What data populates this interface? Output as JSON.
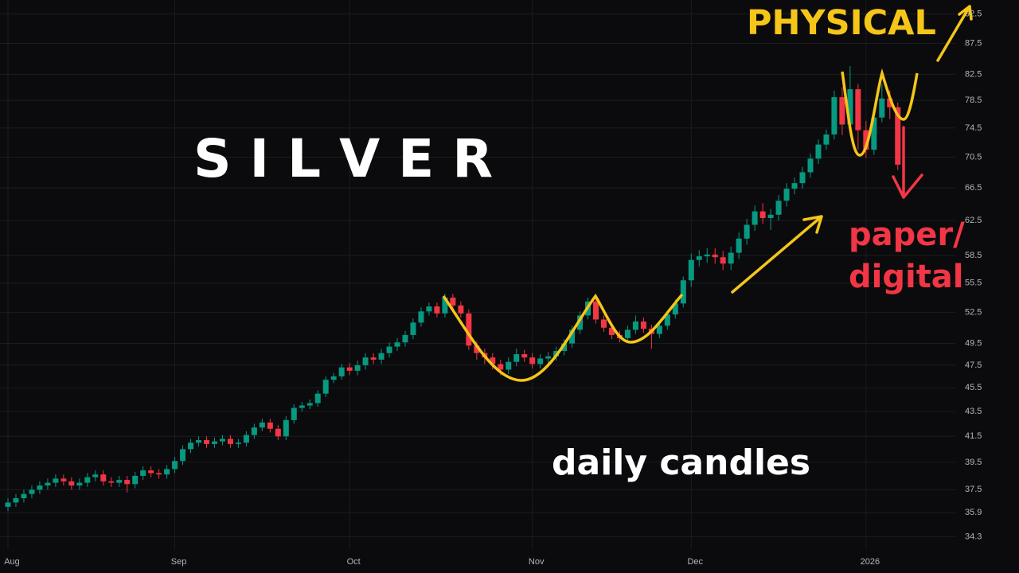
{
  "chart_data": {
    "type": "candlestick",
    "log_scale": true,
    "grid": true,
    "up_color": "#089981",
    "down_color": "#f23645",
    "annotations": [
      "S I L V E R",
      "daily candles",
      "PHYSICAL",
      "paper/",
      "digital"
    ],
    "ylim": [
      33.5,
      95.0
    ],
    "yticks": [
      34.3,
      35.9,
      37.5,
      39.5,
      41.5,
      43.5,
      45.5,
      47.5,
      49.5,
      52.5,
      55.5,
      58.5,
      62.5,
      66.5,
      70.5,
      74.5,
      78.5,
      82.5,
      87.5,
      92.5
    ],
    "categories": [
      "Aug",
      null,
      null,
      null,
      null,
      null,
      null,
      null,
      null,
      null,
      null,
      null,
      null,
      null,
      null,
      null,
      null,
      null,
      null,
      null,
      null,
      "Sep",
      null,
      null,
      null,
      null,
      null,
      null,
      null,
      null,
      null,
      null,
      null,
      null,
      null,
      null,
      null,
      null,
      null,
      null,
      null,
      null,
      null,
      "Oct",
      null,
      null,
      null,
      null,
      null,
      null,
      null,
      null,
      null,
      null,
      null,
      null,
      null,
      null,
      null,
      null,
      null,
      null,
      null,
      null,
      null,
      null,
      "Nov",
      null,
      null,
      null,
      null,
      null,
      null,
      null,
      null,
      null,
      null,
      null,
      null,
      null,
      null,
      null,
      null,
      null,
      null,
      null,
      "Dec",
      null,
      null,
      null,
      null,
      null,
      null,
      null,
      null,
      null,
      null,
      null,
      null,
      null,
      null,
      null,
      null,
      null,
      null,
      null,
      null,
      null,
      "2026",
      null,
      null,
      null,
      null
    ],
    "open": [
      36.3,
      36.6,
      36.9,
      37.2,
      37.5,
      37.8,
      38.0,
      38.3,
      38.1,
      37.8,
      38.0,
      38.4,
      38.6,
      38.1,
      38.0,
      38.2,
      37.9,
      38.5,
      38.9,
      38.7,
      38.6,
      39.0,
      39.6,
      40.5,
      41.0,
      41.2,
      40.9,
      41.1,
      41.3,
      40.9,
      41.0,
      41.6,
      42.2,
      42.6,
      42.1,
      41.5,
      42.8,
      43.8,
      44.0,
      44.2,
      45.0,
      46.2,
      46.5,
      47.3,
      47.0,
      47.5,
      48.2,
      48.0,
      48.6,
      49.2,
      49.6,
      50.3,
      51.5,
      52.6,
      53.1,
      52.4,
      54.0,
      53.2,
      52.4,
      49.3,
      48.6,
      48.2,
      47.6,
      47.1,
      47.8,
      48.5,
      48.2,
      47.6,
      48.1,
      48.3,
      48.8,
      49.5,
      50.8,
      52.2,
      53.6,
      51.8,
      51.0,
      50.3,
      50.0,
      50.8,
      51.6,
      50.9,
      50.4,
      51.2,
      52.3,
      53.4,
      55.8,
      58.0,
      58.4,
      58.6,
      58.3,
      57.6,
      58.8,
      60.4,
      62.0,
      63.6,
      62.8,
      63.2,
      64.9,
      66.4,
      67.1,
      68.5,
      70.3,
      72.2,
      73.6,
      79.0,
      75.0,
      80.2,
      74.2,
      71.5,
      76.0,
      78.8,
      77.5
    ],
    "high": [
      36.9,
      37.2,
      37.5,
      37.8,
      38.1,
      38.3,
      38.6,
      38.6,
      38.4,
      38.3,
      38.7,
      38.9,
      38.9,
      38.4,
      38.5,
      38.5,
      38.8,
      39.2,
      39.2,
      39.0,
      39.3,
      39.9,
      40.8,
      41.3,
      41.5,
      41.5,
      41.4,
      41.6,
      41.6,
      41.3,
      41.9,
      42.5,
      42.9,
      42.9,
      42.4,
      43.1,
      44.1,
      44.3,
      44.5,
      45.3,
      46.5,
      46.8,
      47.6,
      47.7,
      47.9,
      48.6,
      48.6,
      49.0,
      49.6,
      50.0,
      50.7,
      51.9,
      53.0,
      53.5,
      53.5,
      54.4,
      54.4,
      53.6,
      52.8,
      49.7,
      49.0,
      48.6,
      48.0,
      48.2,
      49.0,
      48.9,
      48.6,
      48.5,
      48.7,
      49.2,
      49.9,
      51.2,
      52.6,
      54.0,
      54.0,
      52.2,
      51.4,
      50.7,
      51.2,
      52.2,
      52.0,
      51.3,
      51.6,
      52.7,
      53.8,
      56.2,
      58.7,
      59.1,
      59.3,
      59.3,
      59.0,
      59.5,
      61.1,
      62.7,
      64.3,
      64.6,
      63.9,
      65.6,
      67.1,
      67.8,
      69.2,
      71.0,
      72.9,
      74.3,
      80.0,
      80.5,
      83.8,
      81.0,
      75.5,
      76.8,
      81.0,
      80.0,
      78.2
    ],
    "low": [
      36.0,
      36.3,
      36.6,
      36.9,
      37.2,
      37.5,
      37.7,
      37.8,
      37.5,
      37.5,
      37.7,
      38.1,
      37.8,
      37.7,
      37.7,
      37.3,
      37.6,
      38.2,
      38.4,
      38.3,
      38.3,
      38.7,
      39.3,
      40.2,
      40.7,
      40.6,
      40.6,
      40.8,
      40.6,
      40.6,
      40.7,
      41.3,
      41.9,
      41.8,
      41.2,
      41.2,
      42.5,
      43.5,
      43.7,
      43.9,
      44.7,
      45.9,
      46.2,
      46.6,
      46.6,
      47.1,
      47.6,
      47.6,
      48.2,
      48.8,
      49.2,
      49.9,
      51.1,
      52.2,
      52.0,
      52.0,
      52.8,
      52.0,
      48.9,
      48.0,
      47.6,
      47.1,
      46.6,
      46.7,
      47.4,
      47.8,
      47.2,
      47.2,
      47.7,
      47.9,
      48.4,
      49.1,
      50.4,
      51.8,
      51.4,
      50.6,
      49.9,
      49.6,
      49.6,
      50.4,
      50.5,
      49.0,
      50.0,
      50.8,
      51.9,
      53.0,
      55.1,
      57.3,
      57.7,
      57.6,
      56.9,
      56.9,
      58.1,
      59.7,
      61.3,
      62.1,
      61.4,
      62.5,
      64.2,
      65.7,
      66.4,
      67.8,
      69.6,
      71.5,
      72.9,
      73.5,
      74.5,
      71.5,
      70.4,
      70.8,
      75.3,
      75.8,
      68.8
    ],
    "close": [
      36.6,
      36.9,
      37.2,
      37.5,
      37.8,
      38.0,
      38.3,
      38.1,
      37.8,
      38.0,
      38.4,
      38.6,
      38.1,
      38.0,
      38.2,
      37.9,
      38.5,
      38.9,
      38.7,
      38.6,
      39.0,
      39.6,
      40.5,
      41.0,
      41.2,
      40.9,
      41.1,
      41.3,
      40.9,
      41.0,
      41.6,
      42.2,
      42.6,
      42.1,
      41.5,
      42.8,
      43.8,
      44.0,
      44.2,
      45.0,
      46.2,
      46.5,
      47.3,
      47.0,
      47.5,
      48.2,
      48.0,
      48.6,
      49.2,
      49.6,
      50.3,
      51.5,
      52.6,
      53.1,
      52.4,
      54.0,
      53.2,
      52.4,
      49.3,
      48.6,
      48.2,
      47.6,
      47.1,
      47.8,
      48.5,
      48.2,
      47.6,
      48.1,
      48.3,
      48.8,
      49.5,
      50.8,
      52.2,
      53.6,
      51.8,
      51.0,
      50.3,
      50.0,
      50.8,
      51.6,
      50.9,
      50.4,
      51.2,
      52.3,
      53.4,
      55.8,
      58.0,
      58.4,
      58.6,
      58.3,
      57.6,
      58.8,
      60.4,
      62.0,
      63.6,
      62.8,
      63.2,
      64.9,
      66.4,
      67.1,
      68.5,
      70.3,
      72.2,
      73.6,
      79.0,
      75.0,
      80.2,
      74.2,
      71.5,
      76.0,
      78.8,
      77.5,
      69.5
    ]
  }
}
